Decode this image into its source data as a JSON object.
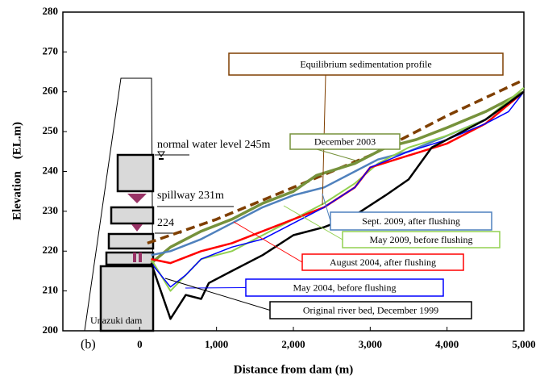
{
  "chart_data": {
    "type": "line",
    "xlabel": "Distance from dam (m)",
    "ylabel": "Elevation　(EL.m)",
    "xlim": [
      -1000,
      5000
    ],
    "xticks": [
      0,
      {
        "value": 1000,
        "label": "1,000"
      },
      {
        "value": 2000,
        "label": "2,000"
      },
      {
        "value": 3000,
        "label": "3,000"
      },
      {
        "value": 4000,
        "label": "4,000"
      },
      {
        "value": 5000,
        "label": "5,000"
      }
    ],
    "ylim": [
      200,
      280
    ],
    "yticks": [
      200,
      210,
      220,
      230,
      240,
      250,
      260,
      270,
      280
    ],
    "annotations": [
      "normal water level 245m",
      "spillway 231m",
      "224",
      "Unazuki dam",
      "(b)"
    ],
    "series": [
      {
        "name": "Equilibrium sedimentation profile",
        "color": "#7f3f00",
        "dashed": true,
        "x": [
          100,
          1000,
          2000,
          3000,
          4000,
          5000
        ],
        "values": [
          222,
          228,
          236,
          244,
          254,
          263
        ]
      },
      {
        "name": "December 2003",
        "color": "#76923c",
        "x": [
          150,
          400,
          800,
          1200,
          1600,
          2000,
          2300,
          2800,
          3200,
          3600,
          4000,
          4500,
          5000
        ],
        "values": [
          217,
          221,
          225,
          228,
          232,
          235,
          239,
          242,
          246,
          248,
          251,
          255,
          260
        ]
      },
      {
        "name": "Sept. 2009, after flushing",
        "color": "#4f81bd",
        "x": [
          150,
          400,
          800,
          1200,
          1600,
          2000,
          2400,
          2800,
          3100,
          3500,
          4000,
          4500,
          5000
        ],
        "values": [
          219,
          220,
          223,
          227,
          231,
          234,
          236,
          240,
          243,
          245,
          249,
          253,
          260
        ]
      },
      {
        "name": "May 2009, before flushing",
        "color": "#92d050",
        "x": [
          150,
          400,
          800,
          1200,
          1600,
          2000,
          2400,
          2800,
          3100,
          3500,
          4000,
          4500,
          5000
        ],
        "values": [
          218,
          210,
          218,
          220,
          224,
          228,
          232,
          237,
          242,
          246,
          249,
          253,
          261
        ]
      },
      {
        "name": "August 2004, after flushing",
        "color": "#ff0000",
        "x": [
          150,
          400,
          800,
          1200,
          1600,
          2000,
          2400,
          2800,
          3000,
          3500,
          4000,
          4500,
          5000
        ],
        "values": [
          218,
          217,
          220,
          222,
          225,
          228,
          231,
          236,
          241,
          244,
          247,
          252,
          260
        ]
      },
      {
        "name": "May 2004, before flushing",
        "color": "#0000ff",
        "x": [
          150,
          400,
          600,
          800,
          1200,
          1600,
          2000,
          2400,
          2800,
          3000,
          3500,
          4000,
          4500,
          4800,
          5000
        ],
        "values": [
          217,
          211,
          214,
          218,
          221,
          223,
          227,
          231,
          236,
          241,
          245,
          248,
          252,
          255,
          260
        ]
      },
      {
        "name": "Original river bed, December 1999",
        "color": "#000000",
        "x": [
          150,
          400,
          600,
          800,
          900,
          1200,
          1600,
          2000,
          2400,
          2800,
          3200,
          3500,
          3800,
          4000,
          4500,
          5000
        ],
        "values": [
          217,
          203,
          209,
          208,
          212,
          215,
          219,
          224,
          226,
          229,
          234,
          238,
          246,
          248,
          253,
          260
        ]
      }
    ]
  }
}
